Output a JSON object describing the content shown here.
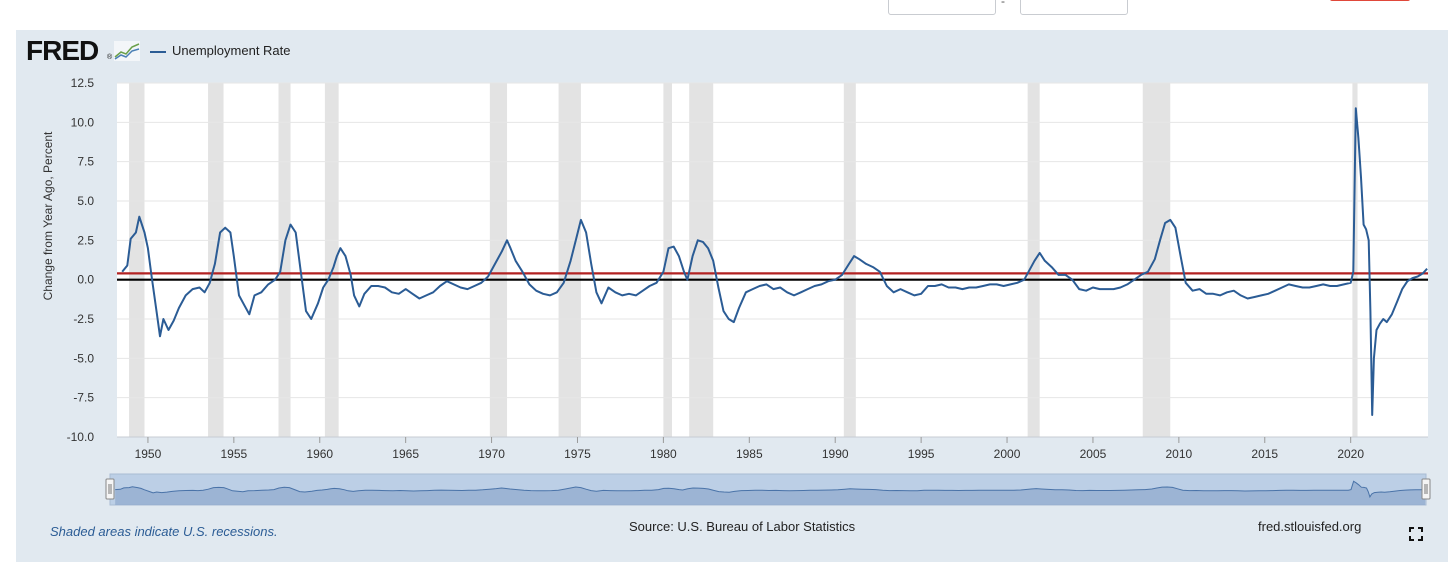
{
  "page": {
    "logo_text": "FRED",
    "logo_mark": "®",
    "legend_label": "Unemployment Rate",
    "footer_note": "Shaded areas indicate U.S. recessions.",
    "source": "Source: U.S. Bureau of Labor Statistics",
    "site": "fred.stlouisfed.org",
    "icons": [
      "fred-graph-icon",
      "fullscreen-icon"
    ]
  },
  "chart_data": {
    "type": "line",
    "title": "",
    "xlabel": "",
    "ylabel": "Change from Year Ago, Percent",
    "ylim": [
      -10,
      12.5
    ],
    "xlim": [
      1948.2,
      2024.5
    ],
    "grid": true,
    "legend_placement": "top-left",
    "x_ticks": [
      1950,
      1955,
      1960,
      1965,
      1970,
      1975,
      1980,
      1985,
      1990,
      1995,
      2000,
      2005,
      2010,
      2015,
      2020
    ],
    "y_ticks": [
      "12.5",
      "10.0",
      "7.5",
      "5.0",
      "2.5",
      "0.0",
      "-2.5",
      "-5.0",
      "-7.5",
      "-10.0"
    ],
    "y_tick_values": [
      12.5,
      10.0,
      7.5,
      5.0,
      2.5,
      0.0,
      -2.5,
      -5.0,
      -7.5,
      -10.0
    ],
    "recessions": [
      [
        1948.9,
        1949.8
      ],
      [
        1953.5,
        1954.4
      ],
      [
        1957.6,
        1958.3
      ],
      [
        1960.3,
        1961.1
      ],
      [
        1969.9,
        1970.9
      ],
      [
        1973.9,
        1975.2
      ],
      [
        1980.0,
        1980.5
      ],
      [
        1981.5,
        1982.9
      ],
      [
        1990.5,
        1991.2
      ],
      [
        2001.2,
        2001.9
      ],
      [
        2007.9,
        2009.5
      ],
      [
        2020.1,
        2020.4
      ]
    ],
    "reference_lines": [
      {
        "value": 0.4,
        "color": "#b22222"
      },
      {
        "value": 0.0,
        "color": "#000000"
      }
    ],
    "series": [
      {
        "name": "Unemployment Rate",
        "color": "#2b5c95",
        "points": [
          [
            1948.5,
            0.5
          ],
          [
            1948.8,
            0.9
          ],
          [
            1949.0,
            2.6
          ],
          [
            1949.3,
            3.0
          ],
          [
            1949.5,
            4.0
          ],
          [
            1949.8,
            3.0
          ],
          [
            1950.0,
            2.0
          ],
          [
            1950.2,
            0.3
          ],
          [
            1950.5,
            -2.0
          ],
          [
            1950.7,
            -3.6
          ],
          [
            1950.9,
            -2.5
          ],
          [
            1951.2,
            -3.2
          ],
          [
            1951.5,
            -2.6
          ],
          [
            1951.8,
            -1.8
          ],
          [
            1952.2,
            -1.0
          ],
          [
            1952.6,
            -0.6
          ],
          [
            1953.0,
            -0.5
          ],
          [
            1953.3,
            -0.8
          ],
          [
            1953.6,
            -0.2
          ],
          [
            1953.9,
            1.0
          ],
          [
            1954.2,
            3.0
          ],
          [
            1954.5,
            3.3
          ],
          [
            1954.8,
            3.0
          ],
          [
            1955.0,
            1.5
          ],
          [
            1955.3,
            -1.0
          ],
          [
            1955.6,
            -1.6
          ],
          [
            1955.9,
            -2.2
          ],
          [
            1956.2,
            -1.0
          ],
          [
            1956.6,
            -0.8
          ],
          [
            1957.0,
            -0.3
          ],
          [
            1957.4,
            0.0
          ],
          [
            1957.7,
            0.5
          ],
          [
            1958.0,
            2.5
          ],
          [
            1958.3,
            3.5
          ],
          [
            1958.6,
            3.0
          ],
          [
            1958.9,
            0.5
          ],
          [
            1959.2,
            -2.0
          ],
          [
            1959.5,
            -2.5
          ],
          [
            1959.9,
            -1.5
          ],
          [
            1960.2,
            -0.5
          ],
          [
            1960.5,
            0.0
          ],
          [
            1960.8,
            0.8
          ],
          [
            1961.0,
            1.5
          ],
          [
            1961.2,
            2.0
          ],
          [
            1961.5,
            1.5
          ],
          [
            1961.8,
            0.3
          ],
          [
            1962.0,
            -1.0
          ],
          [
            1962.3,
            -1.7
          ],
          [
            1962.6,
            -0.9
          ],
          [
            1963.0,
            -0.4
          ],
          [
            1963.4,
            -0.4
          ],
          [
            1963.8,
            -0.5
          ],
          [
            1964.2,
            -0.8
          ],
          [
            1964.6,
            -0.9
          ],
          [
            1965.0,
            -0.6
          ],
          [
            1965.4,
            -0.9
          ],
          [
            1965.8,
            -1.2
          ],
          [
            1966.2,
            -1.0
          ],
          [
            1966.6,
            -0.8
          ],
          [
            1967.0,
            -0.4
          ],
          [
            1967.4,
            -0.1
          ],
          [
            1967.8,
            -0.3
          ],
          [
            1968.2,
            -0.5
          ],
          [
            1968.6,
            -0.6
          ],
          [
            1969.0,
            -0.4
          ],
          [
            1969.4,
            -0.2
          ],
          [
            1969.8,
            0.2
          ],
          [
            1970.2,
            1.0
          ],
          [
            1970.6,
            1.8
          ],
          [
            1970.9,
            2.5
          ],
          [
            1971.1,
            2.0
          ],
          [
            1971.4,
            1.2
          ],
          [
            1971.8,
            0.5
          ],
          [
            1972.2,
            -0.3
          ],
          [
            1972.6,
            -0.7
          ],
          [
            1973.0,
            -0.9
          ],
          [
            1973.4,
            -1.0
          ],
          [
            1973.8,
            -0.8
          ],
          [
            1974.2,
            -0.2
          ],
          [
            1974.6,
            1.2
          ],
          [
            1974.9,
            2.5
          ],
          [
            1975.2,
            3.8
          ],
          [
            1975.5,
            3.0
          ],
          [
            1975.8,
            1.0
          ],
          [
            1976.1,
            -0.8
          ],
          [
            1976.4,
            -1.5
          ],
          [
            1976.8,
            -0.5
          ],
          [
            1977.2,
            -0.8
          ],
          [
            1977.6,
            -1.0
          ],
          [
            1978.0,
            -0.9
          ],
          [
            1978.4,
            -1.0
          ],
          [
            1978.8,
            -0.7
          ],
          [
            1979.2,
            -0.4
          ],
          [
            1979.6,
            -0.2
          ],
          [
            1980.0,
            0.5
          ],
          [
            1980.3,
            2.0
          ],
          [
            1980.6,
            2.1
          ],
          [
            1980.9,
            1.5
          ],
          [
            1981.2,
            0.5
          ],
          [
            1981.4,
            0.0
          ],
          [
            1981.7,
            1.5
          ],
          [
            1982.0,
            2.5
          ],
          [
            1982.3,
            2.4
          ],
          [
            1982.6,
            2.0
          ],
          [
            1982.9,
            1.2
          ],
          [
            1983.2,
            -0.5
          ],
          [
            1983.5,
            -2.0
          ],
          [
            1983.8,
            -2.5
          ],
          [
            1984.1,
            -2.7
          ],
          [
            1984.4,
            -1.8
          ],
          [
            1984.8,
            -0.8
          ],
          [
            1985.2,
            -0.6
          ],
          [
            1985.6,
            -0.4
          ],
          [
            1986.0,
            -0.3
          ],
          [
            1986.4,
            -0.6
          ],
          [
            1986.8,
            -0.5
          ],
          [
            1987.2,
            -0.8
          ],
          [
            1987.6,
            -1.0
          ],
          [
            1988.0,
            -0.8
          ],
          [
            1988.4,
            -0.6
          ],
          [
            1988.8,
            -0.4
          ],
          [
            1989.2,
            -0.3
          ],
          [
            1989.6,
            -0.1
          ],
          [
            1990.0,
            0.0
          ],
          [
            1990.4,
            0.3
          ],
          [
            1990.8,
            1.0
          ],
          [
            1991.1,
            1.5
          ],
          [
            1991.4,
            1.3
          ],
          [
            1991.8,
            1.0
          ],
          [
            1992.2,
            0.8
          ],
          [
            1992.6,
            0.5
          ],
          [
            1993.0,
            -0.4
          ],
          [
            1993.4,
            -0.8
          ],
          [
            1993.8,
            -0.6
          ],
          [
            1994.2,
            -0.8
          ],
          [
            1994.6,
            -1.0
          ],
          [
            1995.0,
            -0.9
          ],
          [
            1995.4,
            -0.4
          ],
          [
            1995.8,
            -0.4
          ],
          [
            1996.2,
            -0.3
          ],
          [
            1996.6,
            -0.5
          ],
          [
            1997.0,
            -0.5
          ],
          [
            1997.4,
            -0.6
          ],
          [
            1997.8,
            -0.5
          ],
          [
            1998.2,
            -0.5
          ],
          [
            1998.6,
            -0.4
          ],
          [
            1999.0,
            -0.3
          ],
          [
            1999.4,
            -0.3
          ],
          [
            1999.8,
            -0.4
          ],
          [
            2000.2,
            -0.3
          ],
          [
            2000.6,
            -0.2
          ],
          [
            2001.0,
            0.0
          ],
          [
            2001.3,
            0.6
          ],
          [
            2001.6,
            1.2
          ],
          [
            2001.9,
            1.7
          ],
          [
            2002.2,
            1.2
          ],
          [
            2002.6,
            0.8
          ],
          [
            2003.0,
            0.3
          ],
          [
            2003.4,
            0.3
          ],
          [
            2003.8,
            0.0
          ],
          [
            2004.2,
            -0.6
          ],
          [
            2004.6,
            -0.7
          ],
          [
            2005.0,
            -0.5
          ],
          [
            2005.4,
            -0.6
          ],
          [
            2005.8,
            -0.6
          ],
          [
            2006.2,
            -0.6
          ],
          [
            2006.6,
            -0.5
          ],
          [
            2007.0,
            -0.3
          ],
          [
            2007.4,
            0.0
          ],
          [
            2007.8,
            0.3
          ],
          [
            2008.2,
            0.5
          ],
          [
            2008.6,
            1.3
          ],
          [
            2008.9,
            2.5
          ],
          [
            2009.2,
            3.6
          ],
          [
            2009.5,
            3.8
          ],
          [
            2009.8,
            3.3
          ],
          [
            2010.1,
            1.5
          ],
          [
            2010.4,
            -0.2
          ],
          [
            2010.8,
            -0.7
          ],
          [
            2011.2,
            -0.6
          ],
          [
            2011.6,
            -0.9
          ],
          [
            2012.0,
            -0.9
          ],
          [
            2012.4,
            -1.0
          ],
          [
            2012.8,
            -0.8
          ],
          [
            2013.2,
            -0.7
          ],
          [
            2013.6,
            -1.0
          ],
          [
            2014.0,
            -1.2
          ],
          [
            2014.4,
            -1.1
          ],
          [
            2014.8,
            -1.0
          ],
          [
            2015.2,
            -0.9
          ],
          [
            2015.6,
            -0.7
          ],
          [
            2016.0,
            -0.5
          ],
          [
            2016.4,
            -0.3
          ],
          [
            2016.8,
            -0.4
          ],
          [
            2017.2,
            -0.5
          ],
          [
            2017.6,
            -0.5
          ],
          [
            2018.0,
            -0.4
          ],
          [
            2018.4,
            -0.3
          ],
          [
            2018.8,
            -0.4
          ],
          [
            2019.2,
            -0.4
          ],
          [
            2019.6,
            -0.3
          ],
          [
            2020.0,
            -0.2
          ],
          [
            2020.15,
            0.5
          ],
          [
            2020.3,
            10.9
          ],
          [
            2020.45,
            9.0
          ],
          [
            2020.6,
            6.5
          ],
          [
            2020.75,
            3.5
          ],
          [
            2020.9,
            3.2
          ],
          [
            2021.05,
            2.5
          ],
          [
            2021.15,
            -2.0
          ],
          [
            2021.25,
            -8.6
          ],
          [
            2021.35,
            -5.0
          ],
          [
            2021.5,
            -3.2
          ],
          [
            2021.7,
            -2.8
          ],
          [
            2021.9,
            -2.5
          ],
          [
            2022.1,
            -2.7
          ],
          [
            2022.4,
            -2.2
          ],
          [
            2022.7,
            -1.4
          ],
          [
            2023.0,
            -0.6
          ],
          [
            2023.3,
            -0.1
          ],
          [
            2023.6,
            0.1
          ],
          [
            2023.9,
            0.2
          ],
          [
            2024.2,
            0.4
          ],
          [
            2024.45,
            0.7
          ]
        ]
      }
    ]
  }
}
